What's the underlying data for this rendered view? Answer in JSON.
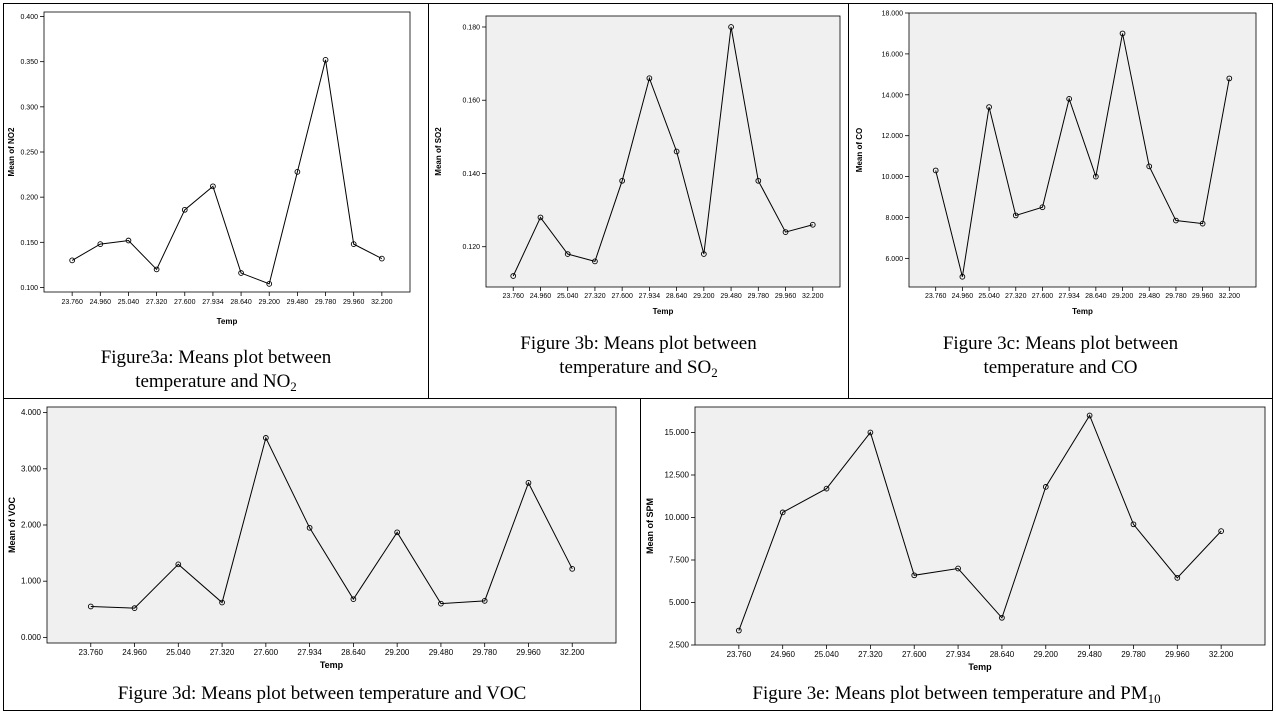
{
  "figures": {
    "fig3a": {
      "caption_line1": "Figure3a: Means plot between",
      "caption_line2_pre": "temperature and NO",
      "caption_sub": "2"
    },
    "fig3b": {
      "caption_line1": "Figure 3b: Means plot between",
      "caption_line2_pre": "temperature and SO",
      "caption_sub": "2"
    },
    "fig3c": {
      "caption_line1": "Figure 3c: Means plot between",
      "caption_line2_pre": "temperature and CO",
      "caption_sub": ""
    },
    "fig3d": {
      "caption_line1": "Figure 3d: Means plot between temperature and VOC",
      "caption_sub": ""
    },
    "fig3e": {
      "caption_line1": "Figure 3e: Means plot between temperature and PM",
      "caption_sub": "10"
    }
  },
  "chart_data": [
    {
      "id": "fig3a",
      "type": "line",
      "xlabel": "Temp",
      "ylabel": "Mean of NO2",
      "categories": [
        "23.760",
        "24.960",
        "25.040",
        "27.320",
        "27.600",
        "27.934",
        "28.640",
        "29.200",
        "29.480",
        "29.780",
        "29.960",
        "32.200"
      ],
      "values": [
        0.13,
        0.148,
        0.152,
        0.12,
        0.186,
        0.212,
        0.116,
        0.104,
        0.228,
        0.352,
        0.148,
        0.132
      ],
      "yticks": [
        0.1,
        0.15,
        0.2,
        0.25,
        0.3,
        0.35,
        0.4
      ],
      "ytick_labels": [
        "0.100",
        "0.150",
        "0.200",
        "0.250",
        "0.300",
        "0.350",
        "0.400"
      ],
      "ylim": [
        0.095,
        0.405
      ],
      "plot_background": "#ffffff"
    },
    {
      "id": "fig3b",
      "type": "line",
      "xlabel": "Temp",
      "ylabel": "Mean of SO2",
      "categories": [
        "23.760",
        "24.960",
        "25.040",
        "27.320",
        "27.600",
        "27.934",
        "28.640",
        "29.200",
        "29.480",
        "29.780",
        "29.960",
        "32.200"
      ],
      "values": [
        0.112,
        0.128,
        0.118,
        0.116,
        0.138,
        0.166,
        0.146,
        0.118,
        0.18,
        0.138,
        0.124,
        0.126
      ],
      "yticks": [
        0.12,
        0.14,
        0.16,
        0.18
      ],
      "ytick_labels": [
        "0.120",
        "0.140",
        "0.160",
        "0.180"
      ],
      "ylim": [
        0.109,
        0.183
      ],
      "plot_background": "#f0f0f0"
    },
    {
      "id": "fig3c",
      "type": "line",
      "xlabel": "Temp",
      "ylabel": "Mean of CO",
      "categories": [
        "23.760",
        "24.960",
        "25.040",
        "27.320",
        "27.600",
        "27.934",
        "28.640",
        "29.200",
        "29.480",
        "29.780",
        "29.960",
        "32.200"
      ],
      "values": [
        10.3,
        5.1,
        13.4,
        8.1,
        8.5,
        13.8,
        10.0,
        17.0,
        10.5,
        7.85,
        7.7,
        14.8
      ],
      "yticks": [
        6.0,
        8.0,
        10.0,
        12.0,
        14.0,
        16.0,
        18.0
      ],
      "ytick_labels": [
        "6.000",
        "8.000",
        "10.000",
        "12.000",
        "14.000",
        "16.000",
        "18.000"
      ],
      "ylim": [
        4.6,
        18.0
      ],
      "plot_background": "#f0f0f0"
    },
    {
      "id": "fig3d",
      "type": "line",
      "xlabel": "Temp",
      "ylabel": "Mean of VOC",
      "categories": [
        "23.760",
        "24.960",
        "25.040",
        "27.320",
        "27.600",
        "27.934",
        "28.640",
        "29.200",
        "29.480",
        "29.780",
        "29.960",
        "32.200"
      ],
      "values": [
        0.55,
        0.52,
        1.3,
        0.62,
        3.55,
        1.95,
        0.68,
        1.87,
        0.6,
        0.65,
        2.75,
        1.22
      ],
      "yticks": [
        0.0,
        1.0,
        2.0,
        3.0,
        4.0
      ],
      "ytick_labels": [
        "0.000",
        "1.000",
        "2.000",
        "3.000",
        "4.000"
      ],
      "ylim": [
        -0.1,
        4.1
      ],
      "plot_background": "#f0f0f0"
    },
    {
      "id": "fig3e",
      "type": "line",
      "xlabel": "Temp",
      "ylabel": "Mean of SPM",
      "categories": [
        "23.760",
        "24.960",
        "25.040",
        "27.320",
        "27.600",
        "27.934",
        "28.640",
        "29.200",
        "29.480",
        "29.780",
        "29.960",
        "32.200"
      ],
      "values": [
        3.35,
        10.3,
        11.7,
        15.0,
        6.6,
        7.0,
        4.1,
        11.8,
        16.0,
        9.6,
        6.45,
        9.2
      ],
      "yticks": [
        2.5,
        5.0,
        7.5,
        10.0,
        12.5,
        15.0
      ],
      "ytick_labels": [
        "2.500",
        "5.000",
        "7.500",
        "10.000",
        "12.500",
        "15.000"
      ],
      "ylim": [
        2.5,
        16.5
      ],
      "plot_background": "#f0f0f0"
    }
  ]
}
